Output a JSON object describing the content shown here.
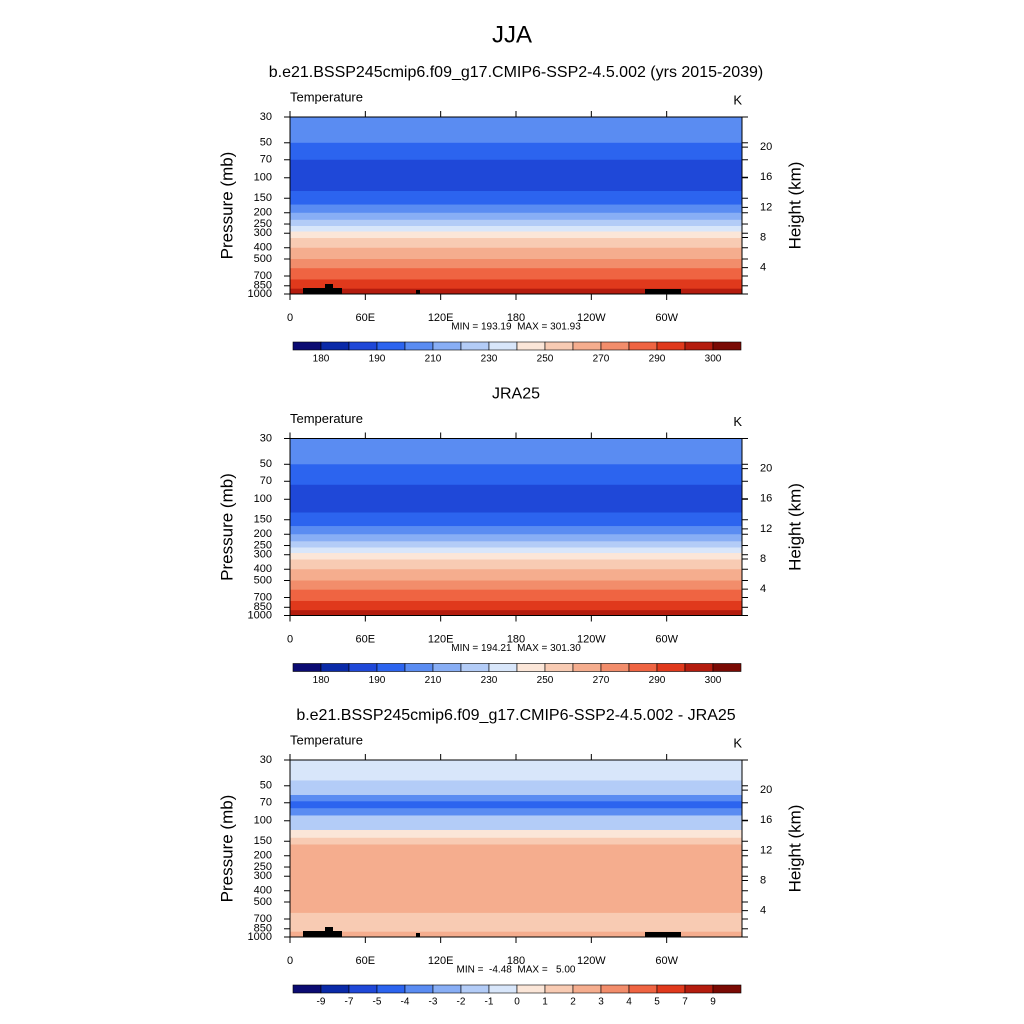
{
  "title": "JJA",
  "chart_data": [
    {
      "type": "contour",
      "title": "b.e21.BSSP245cmip6.f09_g17.CMIP6-SSP2-4.5.002 (yrs 2015-2039)",
      "left_label": "Temperature",
      "right_label": "K",
      "ylabel": "Pressure (mb)",
      "y2label": "Height (km)",
      "ylim": [
        1000,
        30
      ],
      "ylog": true,
      "yticks": [
        30,
        50,
        70,
        100,
        150,
        200,
        250,
        300,
        400,
        500,
        700,
        850,
        1000
      ],
      "y2lim": [
        0.5,
        24
      ],
      "y2ticks": [
        4,
        8,
        12,
        16,
        20
      ],
      "xlim": [
        0,
        360
      ],
      "xticks": [
        0,
        {
          "value": 60,
          "label": "60E"
        },
        {
          "value": 120,
          "label": "120E"
        },
        180,
        {
          "value": 240,
          "label": "120W"
        },
        {
          "value": 300,
          "label": "60W"
        }
      ],
      "stats": "MIN = 193.19  MAX = 301.93",
      "colorbar": {
        "colors": [
          "#0b0b72",
          "#0a2aa8",
          "#1f48d8",
          "#2c64ef",
          "#5a8cf2",
          "#88aef5",
          "#b3ccf7",
          "#d8e6fa",
          "#fbe6d8",
          "#f8cbb3",
          "#f5ad8e",
          "#f28d6b",
          "#ef6442",
          "#e0391c",
          "#b41c0e",
          "#7a0a04"
        ],
        "labels": [
          180,
          190,
          210,
          230,
          250,
          270,
          290,
          300
        ]
      }
    },
    {
      "type": "contour",
      "title": "JRA25",
      "left_label": "Temperature",
      "right_label": "K",
      "ylabel": "Pressure (mb)",
      "y2label": "Height (km)",
      "ylim": [
        1000,
        30
      ],
      "ylog": true,
      "yticks": [
        30,
        50,
        70,
        100,
        150,
        200,
        250,
        300,
        400,
        500,
        700,
        850,
        1000
      ],
      "y2lim": [
        0.5,
        24
      ],
      "y2ticks": [
        4,
        8,
        12,
        16,
        20
      ],
      "xlim": [
        0,
        360
      ],
      "xticks": [
        0,
        {
          "value": 60,
          "label": "60E"
        },
        {
          "value": 120,
          "label": "120E"
        },
        180,
        {
          "value": 240,
          "label": "120W"
        },
        {
          "value": 300,
          "label": "60W"
        }
      ],
      "stats": "MIN = 194.21  MAX = 301.30",
      "colorbar": {
        "colors": [
          "#0b0b72",
          "#0a2aa8",
          "#1f48d8",
          "#2c64ef",
          "#5a8cf2",
          "#88aef5",
          "#b3ccf7",
          "#d8e6fa",
          "#fbe6d8",
          "#f8cbb3",
          "#f5ad8e",
          "#f28d6b",
          "#ef6442",
          "#e0391c",
          "#b41c0e",
          "#7a0a04"
        ],
        "labels": [
          180,
          190,
          210,
          230,
          250,
          270,
          290,
          300
        ]
      }
    },
    {
      "type": "contour",
      "title": "b.e21.BSSP245cmip6.f09_g17.CMIP6-SSP2-4.5.002 - JRA25",
      "left_label": "Temperature",
      "right_label": "K",
      "ylabel": "Pressure (mb)",
      "y2label": "Height (km)",
      "ylim": [
        1000,
        30
      ],
      "ylog": true,
      "yticks": [
        30,
        50,
        70,
        100,
        150,
        200,
        250,
        300,
        400,
        500,
        700,
        850,
        1000
      ],
      "y2lim": [
        0.5,
        24
      ],
      "y2ticks": [
        4,
        8,
        12,
        16,
        20
      ],
      "xlim": [
        0,
        360
      ],
      "xticks": [
        0,
        {
          "value": 60,
          "label": "60E"
        },
        {
          "value": 120,
          "label": "120E"
        },
        180,
        {
          "value": 240,
          "label": "120W"
        },
        {
          "value": 300,
          "label": "60W"
        }
      ],
      "stats": "MIN =  -4.48  MAX =   5.00",
      "colorbar": {
        "colors": [
          "#0b0b72",
          "#0a2aa8",
          "#1f48d8",
          "#2c64ef",
          "#5a8cf2",
          "#88aef5",
          "#b3ccf7",
          "#d8e6fa",
          "#fbe6d8",
          "#f8cbb3",
          "#f5ad8e",
          "#f28d6b",
          "#ef6442",
          "#e0391c",
          "#b41c0e",
          "#7a0a04"
        ],
        "labels": [
          -9,
          -7,
          -5,
          -4,
          -3,
          -2,
          -1,
          0,
          1,
          2,
          3,
          4,
          5,
          7,
          9
        ]
      }
    }
  ]
}
